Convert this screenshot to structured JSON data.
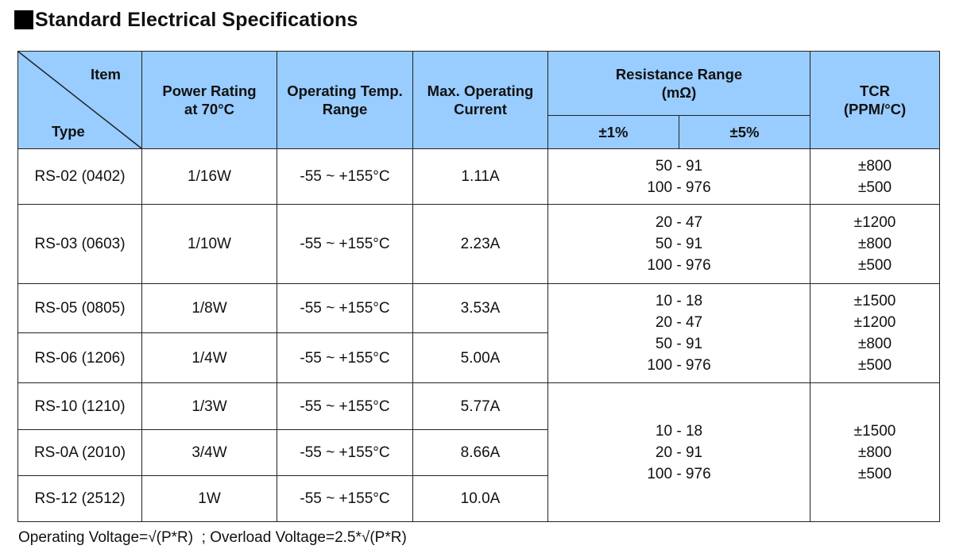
{
  "title": "Standard Electrical Specifications",
  "header": {
    "item": "Item",
    "type": "Type",
    "power_rating_1": "Power Rating",
    "power_rating_2": "at 70°C",
    "op_temp_1": "Operating Temp.",
    "op_temp_2": "Range",
    "max_current_1": "Max. Operating",
    "max_current_2": "Current",
    "resistance_1": "Resistance Range",
    "resistance_2": "(mΩ)",
    "tol_1": "±1%",
    "tol_5": "±5%",
    "tcr_1": "TCR",
    "tcr_2": "(PPM/°C)"
  },
  "rows": [
    {
      "type": "RS-02 (0402)",
      "power": "1/16W",
      "temp": "-55 ~ +155°C",
      "current": "1.11A"
    },
    {
      "type": "RS-03 (0603)",
      "power": "1/10W",
      "temp": "-55 ~ +155°C",
      "current": "2.23A"
    },
    {
      "type": "RS-05 (0805)",
      "power": "1/8W",
      "temp": "-55 ~ +155°C",
      "current": "3.53A"
    },
    {
      "type": "RS-06 (1206)",
      "power": "1/4W",
      "temp": "-55 ~ +155°C",
      "current": "5.00A"
    },
    {
      "type": "RS-10 (1210)",
      "power": "1/3W",
      "temp": "-55 ~ +155°C",
      "current": "5.77A"
    },
    {
      "type": "RS-0A (2010)",
      "power": "3/4W",
      "temp": "-55 ~ +155°C",
      "current": "8.66A"
    },
    {
      "type": "RS-12 (2512)",
      "power": "1W",
      "temp": "-55 ~ +155°C",
      "current": "10.0A"
    }
  ],
  "groups": [
    {
      "resistance": [
        "50 - 91",
        "100 - 976"
      ],
      "tcr": [
        "±800",
        "±500"
      ]
    },
    {
      "resistance": [
        "20 - 47",
        "50 - 91",
        "100 - 976"
      ],
      "tcr": [
        "±1200",
        "±800",
        "±500"
      ]
    },
    {
      "resistance": [
        "10 - 18",
        "20 - 47",
        "50 - 91",
        "100 - 976"
      ],
      "tcr": [
        "±1500",
        "±1200",
        "±800",
        "±500"
      ]
    },
    {
      "resistance": [
        "10 - 18",
        "20 - 91",
        "100 - 976"
      ],
      "tcr": [
        "±1500",
        "±800",
        "±500"
      ]
    }
  ],
  "note": {
    "part1": "Operating Voltage=",
    "sqrt": "√",
    "part2": "(P*R)",
    "sep": "  ; Overload Voltage=2.5*",
    "part3": "(P*R)"
  },
  "colors": {
    "header_bg": "#99ccff",
    "border": "#222222"
  }
}
